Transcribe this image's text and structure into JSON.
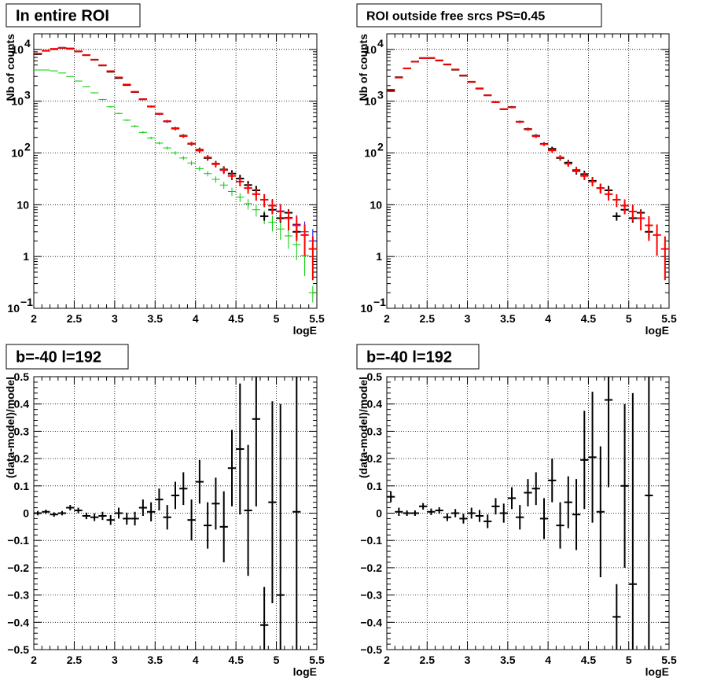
{
  "chart_data": [
    {
      "type": "scatter",
      "title": "In entire ROI",
      "xlabel": "logE",
      "ylabel": "Nb of counts",
      "xlim": [
        2,
        5.5
      ],
      "ylim": [
        0.1,
        20000
      ],
      "log_y": true,
      "grid": true,
      "x_ticks": [
        "2",
        "2.5",
        "3",
        "3.5",
        "4",
        "4.5",
        "5",
        "5.5"
      ],
      "y_ticks": [
        {
          "base": "10",
          "exp": "−1",
          "value": 0.1
        },
        {
          "base": "1",
          "exp": "",
          "value": 1
        },
        {
          "base": "10",
          "exp": "",
          "value": 10
        },
        {
          "base": "10",
          "exp": "2",
          "value": 100
        },
        {
          "base": "10",
          "exp": "3",
          "value": 1000
        },
        {
          "base": "10",
          "exp": "4",
          "value": 10000
        }
      ],
      "series": [
        {
          "color": "#0000ff",
          "width": 1,
          "x": [
            2.05,
            2.15,
            2.25,
            2.35,
            2.45,
            2.55,
            2.65,
            2.75,
            2.85,
            2.95,
            3.05,
            3.15,
            3.25,
            3.35,
            3.45,
            3.55,
            3.65,
            3.75,
            3.85,
            3.95,
            4.05,
            4.15,
            4.25,
            4.35,
            4.45,
            4.55,
            4.65,
            4.75,
            4.85,
            4.95,
            5.05,
            5.15,
            5.25,
            5.35,
            5.45
          ],
          "y": [
            8200,
            9300,
            10200,
            10800,
            10200,
            9100,
            7700,
            6300,
            4900,
            3750,
            2850,
            2080,
            1500,
            1080,
            780,
            560,
            400,
            290,
            210,
            150,
            110,
            80,
            60,
            46,
            36,
            28,
            21,
            16,
            12.5,
            9.8,
            7.6,
            5.7,
            4.2,
            3.0,
            2.0
          ],
          "err": [
            0.01,
            0.01,
            0.01,
            0.01,
            0.01,
            0.01,
            0.012,
            0.014,
            0.016,
            0.018,
            0.02,
            0.024,
            0.028,
            0.032,
            0.038,
            0.044,
            0.05,
            0.06,
            0.07,
            0.08,
            0.1,
            0.11,
            0.13,
            0.15,
            0.17,
            0.19,
            0.22,
            0.25,
            0.28,
            0.32,
            0.36,
            0.42,
            0.5,
            0.58,
            0.7
          ]
        },
        {
          "color": "#00cc00",
          "width": 1,
          "x": [
            2.05,
            2.15,
            2.25,
            2.35,
            2.45,
            2.55,
            2.65,
            2.75,
            2.85,
            2.95,
            3.05,
            3.15,
            3.25,
            3.35,
            3.45,
            3.55,
            3.65,
            3.75,
            3.85,
            3.95,
            4.05,
            4.15,
            4.25,
            4.35,
            4.45,
            4.55,
            4.65,
            4.75,
            4.85,
            4.95,
            5.05,
            5.15,
            5.25,
            5.35,
            5.45
          ],
          "y": [
            4000,
            4000,
            3850,
            3500,
            3000,
            2450,
            1900,
            1450,
            1080,
            780,
            580,
            430,
            330,
            250,
            195,
            155,
            125,
            100,
            80,
            64,
            50,
            40,
            31,
            24,
            18,
            14,
            10.5,
            8.0,
            6.0,
            4.6,
            3.4,
            2.5,
            1.7,
            1.05,
            0.2
          ],
          "err": [
            0.015,
            0.015,
            0.016,
            0.017,
            0.018,
            0.02,
            0.022,
            0.025,
            0.028,
            0.032,
            0.036,
            0.04,
            0.045,
            0.05,
            0.055,
            0.06,
            0.07,
            0.08,
            0.09,
            0.1,
            0.11,
            0.12,
            0.14,
            0.16,
            0.18,
            0.2,
            0.23,
            0.26,
            0.3,
            0.34,
            0.38,
            0.44,
            0.5,
            0.6,
            0.35
          ]
        },
        {
          "color": "#000000",
          "width": 2,
          "x": [
            2.05,
            2.15,
            2.25,
            2.35,
            2.45,
            2.55,
            2.65,
            2.75,
            2.85,
            2.95,
            3.05,
            3.15,
            3.25,
            3.35,
            3.45,
            3.55,
            3.65,
            3.75,
            3.85,
            3.95,
            4.05,
            4.15,
            4.25,
            4.35,
            4.45,
            4.55,
            4.65,
            4.75,
            4.85,
            4.95,
            5.05,
            5.15,
            5.25,
            5.35,
            5.45
          ],
          "y": [
            8100,
            9400,
            10100,
            10700,
            10400,
            9150,
            7750,
            6300,
            4900,
            3700,
            2800,
            2050,
            1500,
            1090,
            790,
            570,
            410,
            300,
            215,
            150,
            115,
            80,
            62,
            48,
            40,
            32,
            24,
            19,
            6,
            8,
            5.5,
            7,
            3,
            null,
            null
          ],
          "err": [
            0.01,
            0.01,
            0.01,
            0.01,
            0.01,
            0.01,
            0.012,
            0.014,
            0.016,
            0.018,
            0.02,
            0.024,
            0.028,
            0.032,
            0.038,
            0.044,
            0.05,
            0.06,
            0.07,
            0.08,
            0.1,
            0.11,
            0.13,
            0.15,
            0.16,
            0.18,
            0.2,
            0.22,
            0.18,
            0.16,
            0.18,
            0.16,
            0.24,
            0,
            0
          ]
        },
        {
          "color": "#ff0000",
          "width": 2,
          "x": [
            2.05,
            2.15,
            2.25,
            2.35,
            2.45,
            2.55,
            2.65,
            2.75,
            2.85,
            2.95,
            3.05,
            3.15,
            3.25,
            3.35,
            3.45,
            3.55,
            3.65,
            3.75,
            3.85,
            3.95,
            4.05,
            4.15,
            4.25,
            4.35,
            4.45,
            4.55,
            4.65,
            4.75,
            4.85,
            4.95,
            5.05,
            5.15,
            5.25,
            5.35,
            5.45
          ],
          "y": [
            8300,
            9450,
            10250,
            10750,
            10250,
            9150,
            7750,
            6350,
            4950,
            3800,
            2880,
            2100,
            1520,
            1090,
            790,
            570,
            410,
            295,
            212,
            152,
            112,
            82,
            61,
            47,
            36,
            28,
            21,
            16,
            12.5,
            9.6,
            7.4,
            5.5,
            4.0,
            2.6,
            1.4
          ],
          "err": [
            0.01,
            0.01,
            0.01,
            0.01,
            0.01,
            0.01,
            0.012,
            0.014,
            0.016,
            0.018,
            0.02,
            0.024,
            0.028,
            0.032,
            0.038,
            0.044,
            0.05,
            0.06,
            0.07,
            0.08,
            0.1,
            0.11,
            0.13,
            0.15,
            0.17,
            0.19,
            0.22,
            0.25,
            0.28,
            0.32,
            0.36,
            0.42,
            0.5,
            0.6,
            0.75
          ]
        }
      ]
    },
    {
      "type": "scatter",
      "title": "ROI outside free srcs PS=0.45",
      "xlabel": "logE",
      "ylabel": "Nb of counts",
      "xlim": [
        2,
        5.5
      ],
      "ylim": [
        0.1,
        20000
      ],
      "log_y": true,
      "grid": true,
      "x_ticks": [
        "2",
        "2.5",
        "3",
        "3.5",
        "4",
        "4.5",
        "5",
        "5.5"
      ],
      "y_ticks": [
        {
          "base": "10",
          "exp": "−1",
          "value": 0.1
        },
        {
          "base": "1",
          "exp": "",
          "value": 1
        },
        {
          "base": "10",
          "exp": "",
          "value": 10
        },
        {
          "base": "10",
          "exp": "2",
          "value": 100
        },
        {
          "base": "10",
          "exp": "3",
          "value": 1000
        },
        {
          "base": "10",
          "exp": "4",
          "value": 10000
        }
      ],
      "series": [
        {
          "color": "#000000",
          "width": 2,
          "x": [
            2.05,
            2.15,
            2.25,
            2.35,
            2.45,
            2.55,
            2.65,
            2.75,
            2.85,
            2.95,
            3.05,
            3.15,
            3.25,
            3.35,
            3.45,
            3.55,
            3.65,
            3.75,
            3.85,
            3.95,
            4.05,
            4.15,
            4.25,
            4.35,
            4.45,
            4.55,
            4.65,
            4.75,
            4.85,
            4.95,
            5.05,
            5.15,
            5.25,
            5.35,
            5.45
          ],
          "y": [
            1650,
            2900,
            4300,
            5800,
            6800,
            6800,
            6100,
            5100,
            4050,
            3100,
            2350,
            1750,
            1300,
            960,
            700,
            770,
            400,
            290,
            215,
            150,
            120,
            80,
            65,
            45,
            39,
            29,
            21,
            19,
            6,
            8,
            5.5,
            7,
            3,
            null,
            null
          ],
          "err": [
            0.02,
            0.015,
            0.012,
            0.01,
            0.01,
            0.01,
            0.012,
            0.014,
            0.016,
            0.018,
            0.02,
            0.024,
            0.028,
            0.032,
            0.038,
            0.044,
            0.05,
            0.06,
            0.07,
            0.08,
            0.1,
            0.11,
            0.13,
            0.15,
            0.16,
            0.18,
            0.2,
            0.22,
            0.18,
            0.16,
            0.18,
            0.16,
            0.24,
            0,
            0
          ]
        },
        {
          "color": "#ff0000",
          "width": 2,
          "x": [
            2.05,
            2.15,
            2.25,
            2.35,
            2.45,
            2.55,
            2.65,
            2.75,
            2.85,
            2.95,
            3.05,
            3.15,
            3.25,
            3.35,
            3.45,
            3.55,
            3.65,
            3.75,
            3.85,
            3.95,
            4.05,
            4.15,
            4.25,
            4.35,
            4.45,
            4.55,
            4.65,
            4.75,
            4.85,
            4.95,
            5.05,
            5.15,
            5.25,
            5.35,
            5.45
          ],
          "y": [
            1560,
            2850,
            4300,
            5800,
            6800,
            6850,
            6150,
            5150,
            4100,
            3150,
            2380,
            1770,
            1300,
            960,
            700,
            760,
            400,
            285,
            210,
            148,
            112,
            82,
            62,
            47,
            36,
            28,
            21,
            16,
            12.5,
            9.6,
            7.4,
            5.5,
            4.0,
            2.6,
            1.4
          ],
          "err": [
            0.02,
            0.015,
            0.012,
            0.01,
            0.01,
            0.01,
            0.012,
            0.014,
            0.016,
            0.018,
            0.02,
            0.024,
            0.028,
            0.032,
            0.038,
            0.044,
            0.05,
            0.06,
            0.07,
            0.08,
            0.1,
            0.11,
            0.13,
            0.15,
            0.17,
            0.19,
            0.22,
            0.25,
            0.28,
            0.32,
            0.36,
            0.42,
            0.5,
            0.6,
            0.75
          ]
        }
      ]
    },
    {
      "type": "scatter",
      "title": "b=-40 l=192",
      "xlabel": "logE",
      "ylabel": "(data-model)/model",
      "xlim": [
        2,
        5.5
      ],
      "ylim": [
        -0.5,
        0.5
      ],
      "log_y": false,
      "grid": true,
      "x_ticks": [
        "2",
        "2.5",
        "3",
        "3.5",
        "4",
        "4.5",
        "5",
        "5.5"
      ],
      "y_ticks": [
        "−0.5",
        "−0.4",
        "−0.3",
        "−0.2",
        "−0.1",
        "0",
        "0.1",
        "0.2",
        "0.3",
        "0.4",
        "0.5"
      ],
      "series": [
        {
          "color": "#000000",
          "width": 2,
          "x": [
            2.05,
            2.15,
            2.25,
            2.35,
            2.45,
            2.55,
            2.65,
            2.75,
            2.85,
            2.95,
            3.05,
            3.15,
            3.25,
            3.35,
            3.45,
            3.55,
            3.65,
            3.75,
            3.85,
            3.95,
            4.05,
            4.15,
            4.25,
            4.35,
            4.45,
            4.55,
            4.65,
            4.75,
            4.85,
            4.95,
            5.05,
            5.25
          ],
          "y": [
            0.0,
            0.005,
            -0.005,
            0.0,
            0.02,
            0.01,
            -0.01,
            -0.015,
            -0.01,
            -0.025,
            0.0,
            -0.02,
            -0.02,
            0.02,
            0.005,
            0.05,
            -0.015,
            0.065,
            0.09,
            -0.025,
            0.115,
            -0.045,
            0.035,
            -0.05,
            0.165,
            0.235,
            0.01,
            0.345,
            -0.41,
            0.04,
            -0.3,
            0.005
          ],
          "err": [
            0.008,
            0.008,
            0.008,
            0.008,
            0.01,
            0.01,
            0.012,
            0.014,
            0.015,
            0.018,
            0.02,
            0.022,
            0.025,
            0.03,
            0.035,
            0.04,
            0.045,
            0.05,
            0.06,
            0.075,
            0.08,
            0.085,
            0.095,
            0.13,
            0.14,
            0.24,
            0.24,
            0.32,
            0.14,
            0.37,
            0.7,
            0.9
          ]
        }
      ]
    },
    {
      "type": "scatter",
      "title": "b=-40 l=192",
      "xlabel": "logE",
      "ylabel": "(data-model)/model",
      "xlim": [
        2,
        5.5
      ],
      "ylim": [
        -0.5,
        0.5
      ],
      "log_y": false,
      "grid": true,
      "x_ticks": [
        "2",
        "2.5",
        "3",
        "3.5",
        "4",
        "4.5",
        "5",
        "5.5"
      ],
      "y_ticks": [
        "−0.5",
        "−0.4",
        "−0.3",
        "−0.2",
        "−0.1",
        "0",
        "0.1",
        "0.2",
        "0.3",
        "0.4",
        "0.5"
      ],
      "series": [
        {
          "color": "#000000",
          "width": 2,
          "x": [
            2.05,
            2.15,
            2.25,
            2.35,
            2.45,
            2.55,
            2.65,
            2.75,
            2.85,
            2.95,
            3.05,
            3.15,
            3.25,
            3.35,
            3.45,
            3.55,
            3.65,
            3.75,
            3.85,
            3.95,
            4.05,
            4.15,
            4.25,
            4.35,
            4.45,
            4.55,
            4.65,
            4.75,
            4.85,
            4.95,
            5.05,
            5.25
          ],
          "y": [
            0.06,
            0.005,
            0.0,
            0.0,
            0.025,
            0.005,
            0.01,
            -0.015,
            0.0,
            -0.02,
            0.0,
            -0.01,
            -0.03,
            0.025,
            0.0,
            0.055,
            -0.015,
            0.075,
            0.09,
            -0.02,
            0.12,
            -0.045,
            0.04,
            -0.005,
            0.195,
            0.205,
            0.005,
            0.415,
            -0.38,
            0.1,
            -0.26,
            0.065
          ],
          "err": [
            0.02,
            0.015,
            0.01,
            0.01,
            0.012,
            0.012,
            0.012,
            0.014,
            0.015,
            0.018,
            0.02,
            0.022,
            0.025,
            0.03,
            0.035,
            0.04,
            0.045,
            0.05,
            0.06,
            0.075,
            0.08,
            0.085,
            0.095,
            0.13,
            0.18,
            0.24,
            0.24,
            0.32,
            0.12,
            0.3,
            0.7,
            0.8
          ]
        }
      ]
    }
  ]
}
